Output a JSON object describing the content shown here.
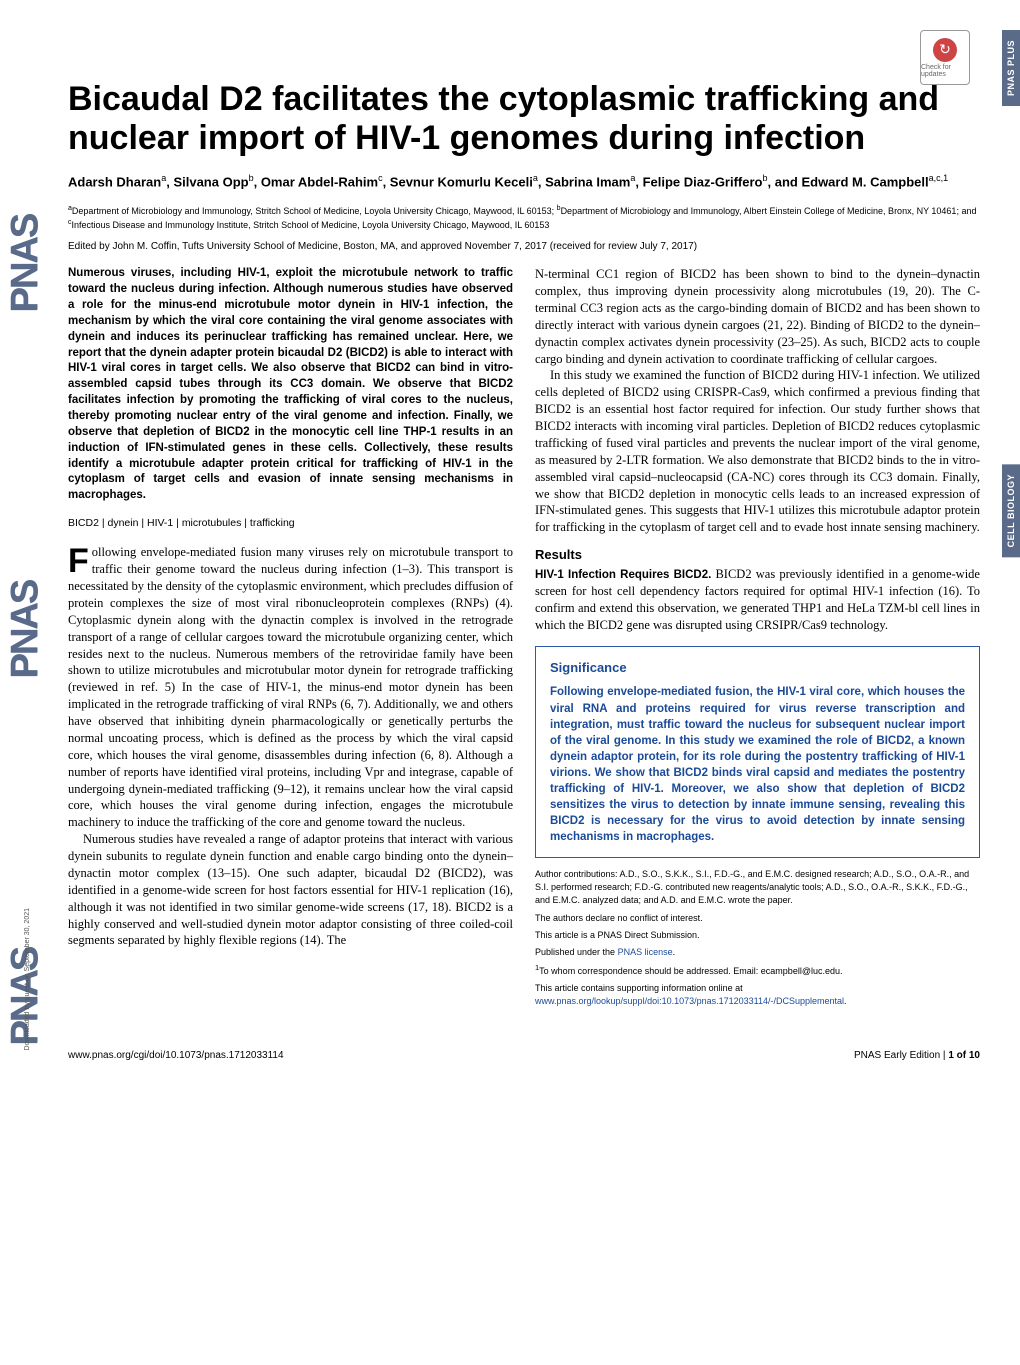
{
  "sideTabs": [
    "PNAS PLUS",
    "CELL BIOLOGY"
  ],
  "checkUpdates": {
    "label": "Check for updates"
  },
  "title": "Bicaudal D2 facilitates the cytoplasmic trafficking and nuclear import of HIV-1 genomes during infection",
  "authors_html": "Adarsh Dharan<sup>a</sup>, Silvana Opp<sup>b</sup>, Omar Abdel-Rahim<sup>c</sup>, Sevnur Komurlu Keceli<sup>a</sup>, Sabrina Imam<sup>a</sup>, Felipe Diaz-Griffero<sup>b</sup>, and Edward M. Campbell<sup>a,c,1</sup>",
  "affiliations_html": "<sup>a</sup>Department of Microbiology and Immunology, Stritch School of Medicine, Loyola University Chicago, Maywood, IL 60153; <sup>b</sup>Department of Microbiology and Immunology, Albert Einstein College of Medicine, Bronx, NY 10461; and <sup>c</sup>Infectious Disease and Immunology Institute, Stritch School of Medicine, Loyola University Chicago, Maywood, IL 60153",
  "edited": "Edited by John M. Coffin, Tufts University School of Medicine, Boston, MA, and approved November 7, 2017 (received for review July 7, 2017)",
  "abstract": "Numerous viruses, including HIV-1, exploit the microtubule network to traffic toward the nucleus during infection. Although numerous studies have observed a role for the minus-end microtubule motor dynein in HIV-1 infection, the mechanism by which the viral core containing the viral genome associates with dynein and induces its perinuclear trafficking has remained unclear. Here, we report that the dynein adapter protein bicaudal D2 (BICD2) is able to interact with HIV-1 viral cores in target cells. We also observe that BICD2 can bind in vitro-assembled capsid tubes through its CC3 domain. We observe that BICD2 facilitates infection by promoting the trafficking of viral cores to the nucleus, thereby promoting nuclear entry of the viral genome and infection. Finally, we observe that depletion of BICD2 in the monocytic cell line THP-1 results in an induction of IFN-stimulated genes in these cells. Collectively, these results identify a microtubule adapter protein critical for trafficking of HIV-1 in the cytoplasm of target cells and evasion of innate sensing mechanisms in macrophages.",
  "keywords": "BICD2 | dynein | HIV-1 | microtubules | trafficking",
  "body_col1_p1": "ollowing envelope-mediated fusion many viruses rely on microtubule transport to traffic their genome toward the nucleus during infection (1–3). This transport is necessitated by the density of the cytoplasmic environment, which precludes diffusion of protein complexes the size of most viral ribonucleoprotein complexes (RNPs) (4). Cytoplasmic dynein along with the dynactin complex is involved in the retrograde transport of a range of cellular cargoes toward the microtubule organizing center, which resides next to the nucleus. Numerous members of the retroviridae family have been shown to utilize microtubules and microtubular motor dynein for retrograde trafficking (reviewed in ref. 5) In the case of HIV-1, the minus-end motor dynein has been implicated in the retrograde trafficking of viral RNPs (6, 7). Additionally, we and others have observed that inhibiting dynein pharmacologically or genetically perturbs the normal uncoating process, which is defined as the process by which the viral capsid core, which houses the viral genome, disassembles during infection (6, 8). Although a number of reports have identified viral proteins, including Vpr and integrase, capable of undergoing dynein-mediated trafficking (9–12), it remains unclear how the viral capsid core, which houses the viral genome during infection, engages the microtubule machinery to induce the trafficking of the core and genome toward the nucleus.",
  "body_col1_p2": "Numerous studies have revealed a range of adaptor proteins that interact with various dynein subunits to regulate dynein function and enable cargo binding onto the dynein–dynactin motor complex (13–15). One such adapter, bicaudal D2 (BICD2), was identified in a genome-wide screen for host factors essential for HIV-1 replication (16), although it was not identified in two similar genome-wide screens (17, 18). BICD2 is a highly conserved and well-studied dynein motor adaptor consisting of three coiled-coil segments separated by highly flexible regions (14). The",
  "body_col2_p1": "N-terminal CC1 region of BICD2 has been shown to bind to the dynein–dynactin complex, thus improving dynein processivity along microtubules (19, 20). The C-terminal CC3 region acts as the cargo-binding domain of BICD2 and has been shown to directly interact with various dynein cargoes (21, 22). Binding of BICD2 to the dynein–dynactin complex activates dynein processivity (23–25). As such, BICD2 acts to couple cargo binding and dynein activation to coordinate trafficking of cellular cargoes.",
  "body_col2_p2": "In this study we examined the function of BICD2 during HIV-1 infection. We utilized cells depleted of BICD2 using CRISPR-Cas9, which confirmed a previous finding that BICD2 is an essential host factor required for infection. Our study further shows that BICD2 interacts with incoming viral particles. Depletion of BICD2 reduces cytoplasmic trafficking of fused viral particles and prevents the nuclear import of the viral genome, as measured by 2-LTR formation. We also demonstrate that BICD2 binds to the in vitro-assembled viral capsid–nucleocapsid (CA-NC) cores through its CC3 domain. Finally, we show that BICD2 depletion in monocytic cells leads to an increased expression of IFN-stimulated genes. This suggests that HIV-1 utilizes this microtubule adaptor protein for trafficking in the cytoplasm of target cell and to evade host innate sensing machinery.",
  "results_head": "Results",
  "results_sub": "HIV-1 Infection Requires BICD2.",
  "results_body": " BICD2 was previously identified in a genome-wide screen for host cell dependency factors required for optimal HIV-1 infection (16). To confirm and extend this observation, we generated THP1 and HeLa TZM-bl cell lines in which the BICD2 gene was disrupted using CRSIPR/Cas9 technology.",
  "significance": {
    "head": "Significance",
    "body": "Following envelope-mediated fusion, the HIV-1 viral core, which houses the viral RNA and proteins required for virus reverse transcription and integration, must traffic toward the nucleus for subsequent nuclear import of the viral genome. In this study we examined the role of BICD2, a known dynein adaptor protein, for its role during the postentry trafficking of HIV-1 virions. We show that BICD2 binds viral capsid and mediates the postentry trafficking of HIV-1. Moreover, we also show that depletion of BICD2 sensitizes the virus to detection by innate immune sensing, revealing this BICD2 is necessary for the virus to avoid detection by innate sensing mechanisms in macrophages."
  },
  "footnotes": {
    "contrib": "Author contributions: A.D., S.O., S.K.K., S.I., F.D.-G., and E.M.C. designed research; A.D., S.O., O.A.-R., and S.I. performed research; F.D.-G. contributed new reagents/analytic tools; A.D., S.O., O.A.-R., S.K.K., F.D.-G., and E.M.C. analyzed data; and A.D. and E.M.C. wrote the paper.",
    "coi": "The authors declare no conflict of interest.",
    "direct": "This article is a PNAS Direct Submission.",
    "license_prefix": "Published under the ",
    "license_link": "PNAS license",
    "corr": "To whom correspondence should be addressed. Email: ecampbell@luc.edu.",
    "si_prefix": "This article contains supporting information online at ",
    "si_link": "www.pnas.org/lookup/suppl/doi:10.1073/pnas.1712033114/-/DCSupplemental"
  },
  "footer": {
    "left": "www.pnas.org/cgi/doi/10.1073/pnas.1712033114",
    "right_prefix": "PNAS Early Edition | ",
    "right_page": "1 of 10"
  },
  "download_note": "Downloaded by guest on September 30, 2021",
  "colors": {
    "tab_bg": "#5a6b8a",
    "sig_border": "#2a5aa8",
    "sig_text": "#1a4a98",
    "link": "#1a4a98"
  }
}
